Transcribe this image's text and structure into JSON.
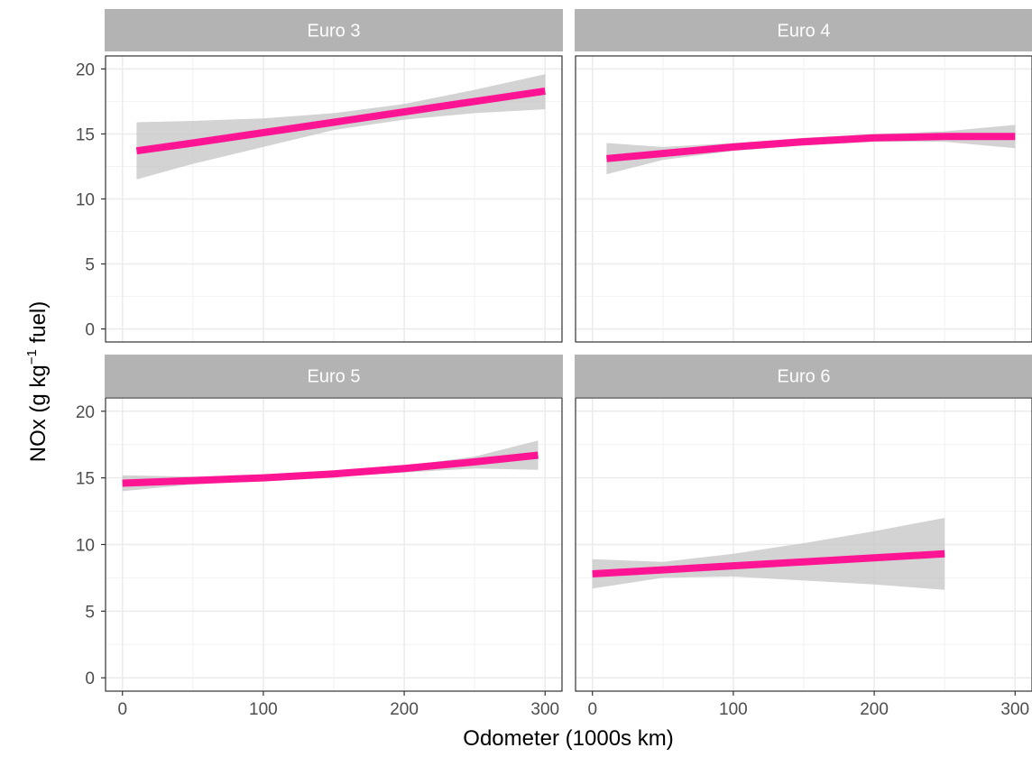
{
  "chart_data": {
    "type": "line",
    "xlabel": "Odometer (1000s km)",
    "ylabel": {
      "prefix": "NOx (g kg",
      "superscript": "−1",
      "suffix": " fuel)"
    },
    "xlim": [
      -12,
      312
    ],
    "ylim": [
      -1,
      21
    ],
    "x_ticks": [
      "0",
      "100",
      "200",
      "300"
    ],
    "y_ticks": [
      "0",
      "5",
      "10",
      "15",
      "20"
    ],
    "grid": true,
    "facets": [
      {
        "title": "Euro 3",
        "x": [
          10,
          50,
          100,
          150,
          200,
          250,
          300
        ],
        "y": [
          13.7,
          14.3,
          15.1,
          15.9,
          16.7,
          17.5,
          18.3
        ],
        "ci_upper": [
          15.9,
          16.0,
          16.2,
          16.6,
          17.3,
          18.4,
          19.6
        ],
        "ci_lower": [
          11.5,
          12.7,
          14.0,
          15.3,
          16.1,
          16.6,
          16.9
        ]
      },
      {
        "title": "Euro 4",
        "x": [
          10,
          50,
          100,
          150,
          200,
          250,
          300
        ],
        "y": [
          13.1,
          13.5,
          14.0,
          14.4,
          14.7,
          14.8,
          14.8
        ],
        "ci_upper": [
          14.3,
          14.0,
          14.3,
          14.7,
          15.0,
          15.2,
          15.7
        ],
        "ci_lower": [
          11.9,
          13.0,
          13.7,
          14.1,
          14.4,
          14.4,
          13.9
        ]
      },
      {
        "title": "Euro 5",
        "x": [
          0,
          50,
          100,
          150,
          200,
          250,
          295
        ],
        "y": [
          14.6,
          14.8,
          15.0,
          15.3,
          15.7,
          16.2,
          16.7
        ],
        "ci_upper": [
          15.2,
          15.1,
          15.2,
          15.5,
          15.9,
          16.6,
          17.8
        ],
        "ci_lower": [
          14.0,
          14.5,
          14.8,
          15.1,
          15.4,
          15.7,
          15.6
        ]
      },
      {
        "title": "Euro 6",
        "x": [
          0,
          50,
          100,
          150,
          200,
          250
        ],
        "y": [
          7.8,
          8.1,
          8.4,
          8.7,
          9.0,
          9.3
        ],
        "ci_upper": [
          8.9,
          8.7,
          9.3,
          10.1,
          11.0,
          12.0
        ],
        "ci_lower": [
          6.7,
          7.5,
          7.6,
          7.3,
          7.0,
          6.6
        ]
      }
    ],
    "line_color": "#ff1493",
    "ribbon_color": "#c4c4c4",
    "strip_color": "#b3b3b3",
    "panel_border_color": "#333333",
    "grid_color": "#ebebeb"
  }
}
